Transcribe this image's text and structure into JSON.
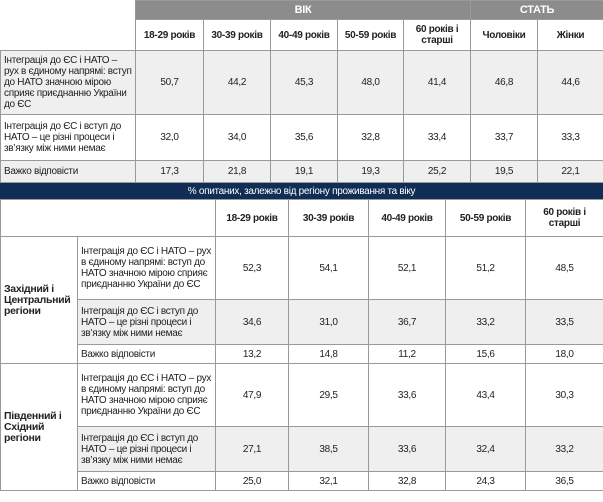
{
  "table1": {
    "groups": [
      "ВІК",
      "СТАТЬ"
    ],
    "columns": [
      "18-29 років",
      "30-39 років",
      "40-49 років",
      "50-59 років",
      "60 років і старші",
      "Чоловіки",
      "Жінки"
    ],
    "rows": [
      {
        "label": "Інтеграція до ЄС і НАТО – рух в єдиному напрямі: вступ до НАТО значною мірою сприяє приєднанню України до ЄС",
        "values": [
          "50,7",
          "44,2",
          "45,3",
          "48,0",
          "41,4",
          "46,8",
          "44,6"
        ]
      },
      {
        "label": "Інтеграція до ЄС і вступ до НАТО – це різні процеси і зв’язку між ними немає",
        "values": [
          "32,0",
          "34,0",
          "35,6",
          "32,8",
          "33,4",
          "33,7",
          "33,3"
        ]
      },
      {
        "label": "Важко відповісти",
        "values": [
          "17,3",
          "21,8",
          "19,1",
          "19,3",
          "25,2",
          "19,5",
          "22,1"
        ]
      }
    ]
  },
  "section_caption": "% опитаних, залежно від регіону проживання та віку",
  "table2": {
    "columns": [
      "18-29 років",
      "30-39 років",
      "40-49 років",
      "50-59 років",
      "60 років і старші"
    ],
    "regions": [
      {
        "name": "Західний і Центральний регіони",
        "rows": [
          {
            "label": "Інтеграція до ЄС і НАТО – рух в єдиному напрямі: вступ до НАТО значною мірою сприяє приєднанню України до ЄС",
            "values": [
              "52,3",
              "54,1",
              "52,1",
              "51,2",
              "48,5"
            ]
          },
          {
            "label": "Інтеграція до ЄС і вступ до НАТО – це різні процеси і зв’язку між ними немає",
            "values": [
              "34,6",
              "31,0",
              "36,7",
              "33,2",
              "33,5"
            ]
          },
          {
            "label": "Важко відповісти",
            "values": [
              "13,2",
              "14,8",
              "11,2",
              "15,6",
              "18,0"
            ]
          }
        ]
      },
      {
        "name": "Південний і Східний регіони",
        "rows": [
          {
            "label": "Інтеграція до ЄС і НАТО – рух в єдиному напрямі: вступ до НАТО значною мірою сприяє приєднанню України до ЄС",
            "values": [
              "47,9",
              "29,5",
              "33,6",
              "43,4",
              "30,3"
            ]
          },
          {
            "label": "Інтеграція до ЄС і вступ до НАТО – це різні процеси і зв’язку між ними немає",
            "values": [
              "27,1",
              "38,5",
              "33,6",
              "32,4",
              "33,2"
            ]
          },
          {
            "label": "Важко відповісти",
            "values": [
              "25,0",
              "32,1",
              "32,8",
              "24,3",
              "36,5"
            ]
          }
        ]
      }
    ]
  },
  "colors": {
    "group_header": "#8c8c8c",
    "caption_bar": "#0f2d55",
    "shade": "#efefef"
  }
}
